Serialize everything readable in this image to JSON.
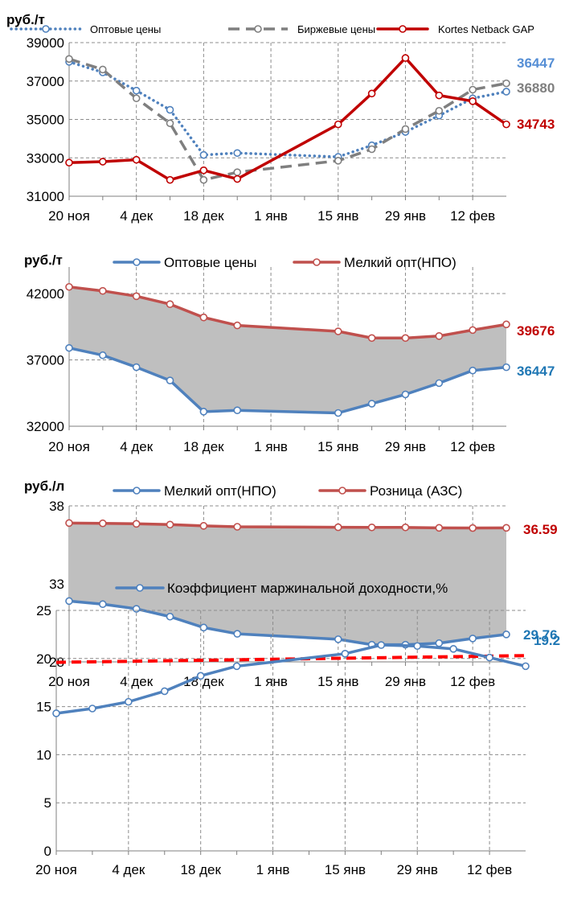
{
  "chart_data": [
    {
      "type": "line",
      "unit_label": "руб./т",
      "categories": [
        "20 ноя",
        "27 ноя",
        "4 дек",
        "11 дек",
        "18 дек",
        "25 дек",
        "15 янв",
        "22 янв",
        "29 янв",
        "5 фев",
        "12 фев",
        "19 фев"
      ],
      "x_days": [
        0,
        7,
        14,
        21,
        28,
        35,
        56,
        63,
        70,
        77,
        84,
        91
      ],
      "tick_labels": [
        "20 ноя",
        "4 дек",
        "18 дек",
        "1 янв",
        "15 янв",
        "29 янв",
        "12 фев"
      ],
      "ylim": [
        31000,
        39000
      ],
      "yticks": [
        31000,
        33000,
        35000,
        37000,
        39000
      ],
      "grid": true,
      "legend_position": "top",
      "series": [
        {
          "name": "Оптовые цены",
          "style": "dotted",
          "color": "#4f81bd",
          "x": [
            0,
            7,
            14,
            21,
            28,
            35,
            56,
            63,
            70,
            77,
            84,
            91
          ],
          "values": [
            38000,
            37450,
            36500,
            35500,
            33150,
            33250,
            33050,
            33650,
            34350,
            35200,
            36100,
            36447
          ],
          "end_label": "36447",
          "end_label_color": "#558ed5"
        },
        {
          "name": "Биржевые цены",
          "style": "dashed",
          "color": "#7f7f7f",
          "x": [
            0,
            7,
            14,
            21,
            28,
            35,
            56,
            63,
            70,
            77,
            84,
            91
          ],
          "values": [
            38150,
            37600,
            36100,
            34800,
            31850,
            32250,
            32850,
            33450,
            34500,
            35450,
            36550,
            36880
          ],
          "end_label": "36880",
          "end_label_color": "#7f7f7f"
        },
        {
          "name": "Kortes Netback GAP",
          "style": "solid",
          "color": "#c00000",
          "x": [
            0,
            7,
            14,
            21,
            28,
            35,
            56,
            63,
            70,
            77,
            84,
            91
          ],
          "values": [
            32750,
            32800,
            32900,
            31850,
            32350,
            31900,
            34743,
            36350,
            38200,
            36250,
            35950,
            34743
          ],
          "end_label": "34743",
          "end_label_color": "#c00000"
        }
      ]
    },
    {
      "type": "area",
      "unit_label": "руб./т",
      "categories": [
        "20 ноя",
        "27 ноя",
        "4 дек",
        "11 дек",
        "18 дек",
        "25 дек",
        "15 янв",
        "22 янв",
        "29 янв",
        "5 фев",
        "12 фев",
        "19 фев"
      ],
      "x_days": [
        0,
        7,
        14,
        21,
        28,
        35,
        56,
        63,
        70,
        77,
        84,
        91
      ],
      "tick_labels": [
        "20 ноя",
        "4 дек",
        "18 дек",
        "1 янв",
        "15 янв",
        "29 янв",
        "12 фев"
      ],
      "ylim": [
        32000,
        44000
      ],
      "yticks": [
        32000,
        37000,
        42000
      ],
      "grid": true,
      "legend_position": "top",
      "fill_between": true,
      "fill_color": "#bfbfbf",
      "series": [
        {
          "name": "Оптовые цены",
          "color": "#4f81bd",
          "values": [
            37900,
            37350,
            36450,
            35450,
            33100,
            33200,
            33000,
            33700,
            34400,
            35250,
            36200,
            36447
          ],
          "end_label": "36447",
          "end_label_color": "#1f77b4"
        },
        {
          "name": "Мелкий опт(НПО)",
          "color": "#c0504d",
          "values": [
            42500,
            42200,
            41800,
            41200,
            40200,
            39600,
            39150,
            38650,
            38650,
            38800,
            39250,
            39676
          ],
          "end_label": "39676",
          "end_label_color": "#c00000"
        }
      ]
    },
    {
      "type": "area",
      "unit_label": "руб./л",
      "categories": [
        "20 ноя",
        "27 ноя",
        "4 дек",
        "11 дек",
        "18 дек",
        "25 дек",
        "15 янв",
        "22 янв",
        "29 янв",
        "5 фев",
        "12 фев",
        "19 фев"
      ],
      "x_days": [
        0,
        7,
        14,
        21,
        28,
        35,
        56,
        63,
        70,
        77,
        84,
        91
      ],
      "tick_labels": [
        "20 ноя",
        "4 дек",
        "18 дек",
        "1 янв",
        "15 янв",
        "29 янв",
        "12 фев"
      ],
      "ylim": [
        28,
        38
      ],
      "yticks": [
        28,
        33,
        38
      ],
      "grid": true,
      "legend_position": "top",
      "fill_between": true,
      "fill_color": "#bfbfbf",
      "series": [
        {
          "name": "Мелкий опт(НПО)",
          "color": "#4f81bd",
          "values": [
            31.9,
            31.7,
            31.4,
            30.9,
            30.2,
            29.8,
            29.45,
            29.1,
            29.1,
            29.2,
            29.5,
            29.76
          ],
          "end_label": "29.76",
          "end_label_color": "#1f77b4"
        },
        {
          "name": "Розница (АЗС)",
          "color": "#c0504d",
          "values": [
            36.9,
            36.88,
            36.85,
            36.8,
            36.72,
            36.66,
            36.63,
            36.62,
            36.62,
            36.59,
            36.58,
            36.59
          ],
          "end_label": "36.59",
          "end_label_color": "#c00000"
        }
      ]
    },
    {
      "type": "line",
      "categories": [
        "20 ноя",
        "27 ноя",
        "4 дек",
        "11 дек",
        "18 дек",
        "25 дек",
        "15 янв",
        "22 янв",
        "29 янв",
        "5 фев",
        "12 фев",
        "19 фев"
      ],
      "x_days": [
        0,
        7,
        14,
        21,
        28,
        35,
        56,
        63,
        70,
        77,
        84,
        91
      ],
      "tick_labels": [
        "20 ноя",
        "4 дек",
        "18 дек",
        "1 янв",
        "15 янв",
        "29 янв",
        "12 фев"
      ],
      "ylim": [
        0,
        25
      ],
      "yticks": [
        0,
        5,
        10,
        15,
        20,
        25
      ],
      "grid": true,
      "legend_position": "top",
      "series": [
        {
          "name": "Коэффициент маржинальной доходности,%",
          "color": "#4f81bd",
          "values": [
            14.3,
            14.8,
            15.5,
            16.6,
            18.2,
            19.2,
            20.5,
            21.4,
            21.3,
            21.0,
            20.1,
            19.2
          ],
          "end_label": "19.2",
          "end_label_color": "#1f77b4"
        }
      ],
      "reference_line": {
        "y_start": 19.6,
        "y_end": 20.3,
        "color": "#ff0000",
        "style": "dashed"
      }
    }
  ]
}
